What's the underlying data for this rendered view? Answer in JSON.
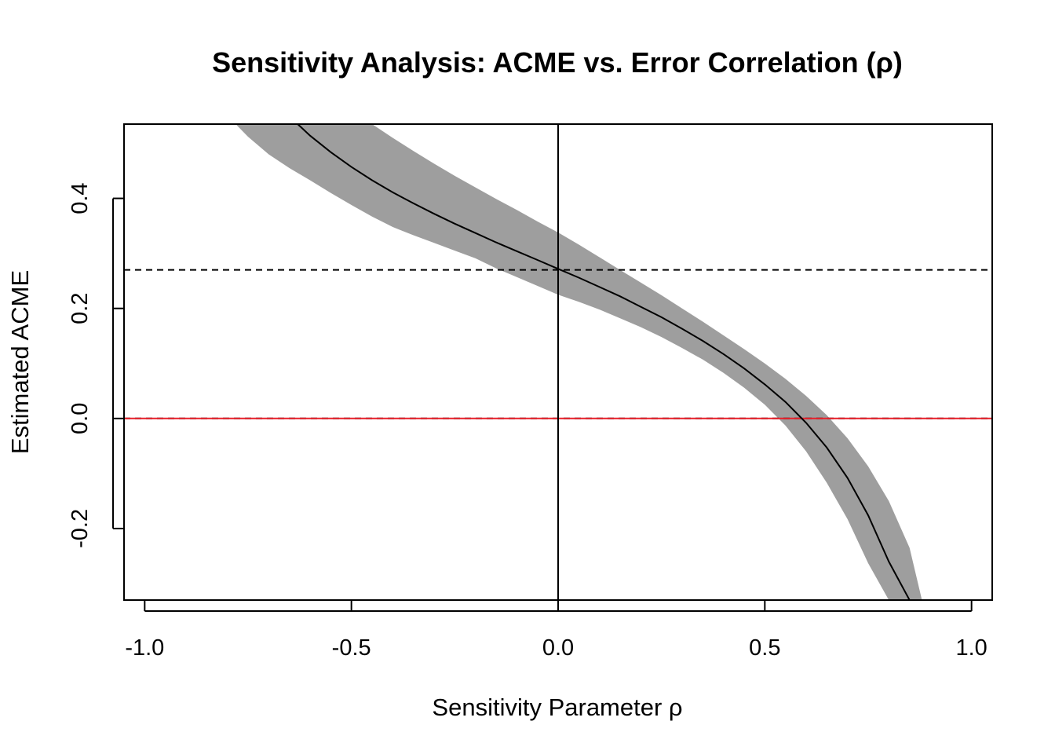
{
  "chart_data": {
    "type": "line",
    "title": "Sensitivity Analysis: ACME vs. Error Correlation (ρ)",
    "xlabel": "Sensitivity Parameter ρ",
    "ylabel": "Estimated ACME",
    "xlim": [
      -1.05,
      1.05
    ],
    "ylim": [
      -0.33,
      0.535
    ],
    "x_ticks": [
      -1.0,
      -0.5,
      0.0,
      0.5,
      1.0
    ],
    "x_tick_labels": [
      "-1.0",
      "-0.5",
      "0.0",
      "0.5",
      "1.0"
    ],
    "y_ticks": [
      -0.2,
      0.0,
      0.2,
      0.4
    ],
    "y_tick_labels": [
      "-0.2",
      "0.0",
      "0.2",
      "0.4"
    ],
    "grid": false,
    "series": [
      {
        "kind": "estimate",
        "color": "#000000",
        "x": [
          -0.63,
          -0.6,
          -0.55,
          -0.5,
          -0.45,
          -0.4,
          -0.35,
          -0.3,
          -0.25,
          -0.2,
          -0.15,
          -0.1,
          -0.05,
          0.0,
          0.05,
          0.1,
          0.15,
          0.2,
          0.25,
          0.3,
          0.35,
          0.4,
          0.45,
          0.5,
          0.55,
          0.6,
          0.65,
          0.7,
          0.75,
          0.8,
          0.85,
          0.875
        ],
        "y": [
          0.535,
          0.514,
          0.484,
          0.457,
          0.433,
          0.411,
          0.391,
          0.372,
          0.354,
          0.337,
          0.32,
          0.304,
          0.288,
          0.272,
          0.256,
          0.239,
          0.222,
          0.203,
          0.184,
          0.163,
          0.141,
          0.117,
          0.091,
          0.062,
          0.03,
          -0.008,
          -0.053,
          -0.108,
          -0.176,
          -0.26,
          -0.33,
          -0.33
        ]
      }
    ],
    "confidence_band": {
      "color": "#9e9e9e",
      "x": [
        -0.78,
        -0.75,
        -0.7,
        -0.65,
        -0.6,
        -0.55,
        -0.5,
        -0.45,
        -0.4,
        -0.35,
        -0.3,
        -0.25,
        -0.2,
        -0.15,
        -0.1,
        -0.05,
        0.0,
        0.05,
        0.1,
        0.15,
        0.2,
        0.25,
        0.3,
        0.35,
        0.4,
        0.45,
        0.5,
        0.55,
        0.6,
        0.65,
        0.7,
        0.75,
        0.8,
        0.85,
        0.88,
        0.9
      ],
      "lower": [
        0.535,
        0.512,
        0.48,
        0.455,
        0.433,
        0.41,
        0.388,
        0.367,
        0.348,
        0.333,
        0.319,
        0.305,
        0.291,
        0.273,
        0.257,
        0.241,
        0.225,
        0.212,
        0.198,
        0.182,
        0.166,
        0.148,
        0.128,
        0.107,
        0.083,
        0.056,
        0.025,
        -0.013,
        -0.06,
        -0.117,
        -0.183,
        -0.263,
        -0.33,
        -0.33,
        -0.33,
        -0.33
      ],
      "upper": [
        null,
        null,
        null,
        null,
        null,
        null,
        null,
        0.535,
        0.51,
        0.486,
        0.463,
        0.441,
        0.42,
        0.399,
        0.379,
        0.358,
        0.338,
        0.316,
        0.293,
        0.27,
        0.247,
        0.224,
        0.2,
        0.176,
        0.151,
        0.126,
        0.1,
        0.072,
        0.041,
        0.006,
        -0.036,
        -0.087,
        -0.15,
        -0.235,
        -0.33,
        -0.33
      ]
    },
    "reference_lines": [
      {
        "orientation": "horizontal",
        "value": 0.27,
        "style": "dashed",
        "color": "#000000"
      },
      {
        "orientation": "horizontal",
        "value": 0.0,
        "style": "dashed",
        "color": "#000000"
      },
      {
        "orientation": "horizontal",
        "value": 0.0,
        "style": "solid",
        "color": "#e8202a"
      },
      {
        "orientation": "vertical",
        "value": 0.0,
        "style": "solid",
        "color": "#000000"
      }
    ]
  }
}
